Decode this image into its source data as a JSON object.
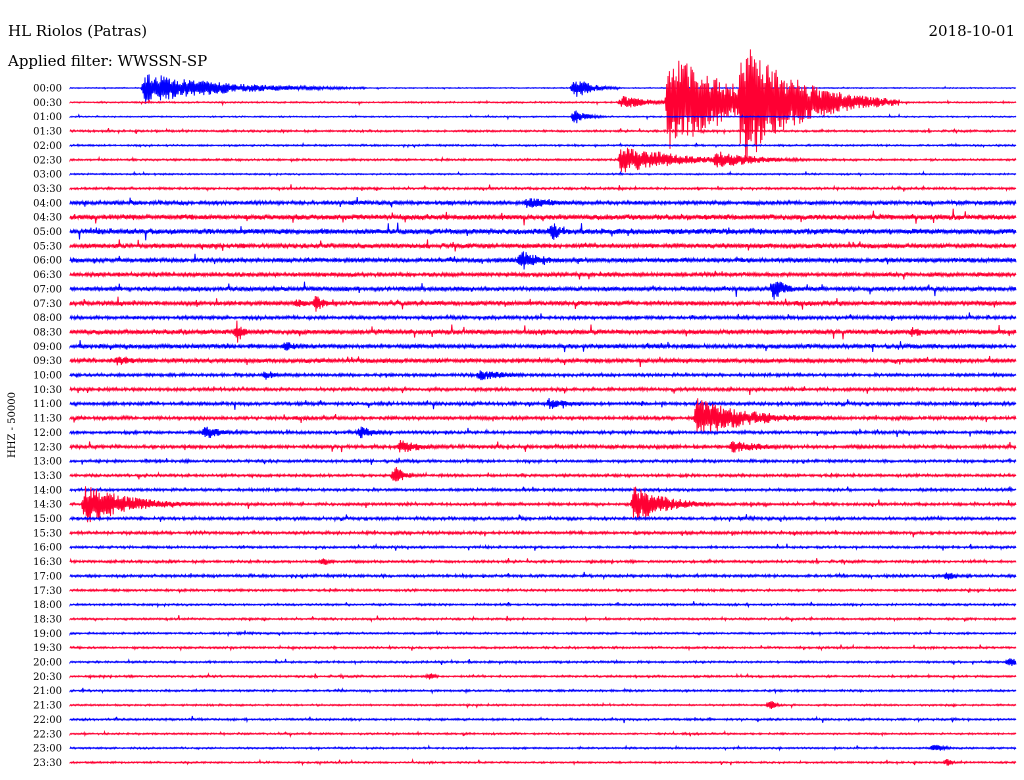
{
  "header": {
    "station": "HL Riolos (Patras)",
    "filter": "Applied filter: WWSSN-SP",
    "date": "2018-10-01"
  },
  "chart_data": {
    "type": "line",
    "title": "HL Riolos (Patras)",
    "subtitle": "Applied filter: WWSSN-SP",
    "date": "2018-10-01",
    "ylabel": "HHZ - 50000",
    "rows": [
      "00:00",
      "00:30",
      "01:00",
      "01:30",
      "02:00",
      "02:30",
      "03:00",
      "03:30",
      "04:00",
      "04:30",
      "05:00",
      "05:30",
      "06:00",
      "06:30",
      "07:00",
      "07:30",
      "08:00",
      "08:30",
      "09:00",
      "09:30",
      "10:00",
      "10:30",
      "11:00",
      "11:30",
      "12:00",
      "12:30",
      "13:00",
      "13:30",
      "14:00",
      "14:30",
      "15:00",
      "15:30",
      "16:00",
      "16:30",
      "17:00",
      "17:30",
      "18:00",
      "18:30",
      "19:00",
      "19:30",
      "20:00",
      "20:30",
      "21:00",
      "21:30",
      "22:00",
      "22:30",
      "23:00",
      "23:30"
    ],
    "colors": [
      "#0000ff",
      "#ff0033"
    ],
    "row_noise": [
      0.4,
      0.6,
      0.5,
      0.8,
      0.7,
      0.8,
      0.6,
      0.9,
      1.6,
      2.2,
      2.3,
      1.9,
      1.8,
      1.7,
      1.7,
      1.8,
      1.4,
      1.9,
      1.7,
      1.8,
      1.2,
      1.3,
      1.3,
      1.4,
      1.2,
      1.4,
      1.1,
      1.1,
      1.1,
      1.1,
      1.2,
      1.2,
      0.9,
      1.0,
      1.1,
      0.9,
      0.8,
      0.8,
      0.8,
      0.8,
      0.8,
      0.8,
      0.8,
      0.7,
      0.8,
      0.7,
      0.7,
      0.7
    ],
    "events": [
      {
        "row": 0,
        "minute": 2.4,
        "amp": 16,
        "dur": 7
      },
      {
        "row": 0,
        "minute": 16.0,
        "amp": 12,
        "dur": 1.5
      },
      {
        "row": 0,
        "minute": 7.5,
        "amp": 3,
        "dur": 2
      },
      {
        "row": 1,
        "minute": 19.0,
        "amp": 52,
        "dur": 6
      },
      {
        "row": 1,
        "minute": 21.3,
        "amp": 66,
        "dur": 5
      },
      {
        "row": 1,
        "minute": 17.5,
        "amp": 7,
        "dur": 3
      },
      {
        "row": 2,
        "minute": 16.0,
        "amp": 8,
        "dur": 1.2
      },
      {
        "row": 5,
        "minute": 17.5,
        "amp": 14,
        "dur": 5
      },
      {
        "row": 5,
        "minute": 20.5,
        "amp": 9,
        "dur": 4
      },
      {
        "row": 5,
        "minute": 18.6,
        "amp": 10,
        "dur": 3
      },
      {
        "row": 8,
        "minute": 14.5,
        "amp": 6,
        "dur": 3
      },
      {
        "row": 10,
        "minute": 15.3,
        "amp": 10,
        "dur": 1
      },
      {
        "row": 12,
        "minute": 14.3,
        "amp": 12,
        "dur": 2
      },
      {
        "row": 14,
        "minute": 22.3,
        "amp": 14,
        "dur": 1.2
      },
      {
        "row": 15,
        "minute": 7.2,
        "amp": 5,
        "dur": 1.5
      },
      {
        "row": 15,
        "minute": 7.8,
        "amp": 9,
        "dur": 1
      },
      {
        "row": 17,
        "minute": 5.3,
        "amp": 12,
        "dur": 0.7
      },
      {
        "row": 17,
        "minute": 26.7,
        "amp": 6,
        "dur": 1.5
      },
      {
        "row": 18,
        "minute": 6.8,
        "amp": 6,
        "dur": 1.5
      },
      {
        "row": 19,
        "minute": 1.5,
        "amp": 6,
        "dur": 2
      },
      {
        "row": 20,
        "minute": 13.0,
        "amp": 6,
        "dur": 3
      },
      {
        "row": 20,
        "minute": 6.2,
        "amp": 6,
        "dur": 1
      },
      {
        "row": 22,
        "minute": 15.2,
        "amp": 6,
        "dur": 2
      },
      {
        "row": 23,
        "minute": 19.9,
        "amp": 20,
        "dur": 5
      },
      {
        "row": 24,
        "minute": 4.3,
        "amp": 8,
        "dur": 1.5
      },
      {
        "row": 24,
        "minute": 9.2,
        "amp": 7,
        "dur": 1.5
      },
      {
        "row": 25,
        "minute": 10.5,
        "amp": 8,
        "dur": 2
      },
      {
        "row": 25,
        "minute": 21.0,
        "amp": 7,
        "dur": 3
      },
      {
        "row": 27,
        "minute": 10.3,
        "amp": 10,
        "dur": 1
      },
      {
        "row": 29,
        "minute": 0.5,
        "amp": 22,
        "dur": 4
      },
      {
        "row": 29,
        "minute": 17.9,
        "amp": 20,
        "dur": 3
      },
      {
        "row": 33,
        "minute": 8.0,
        "amp": 5,
        "dur": 1
      },
      {
        "row": 34,
        "minute": 27.8,
        "amp": 5,
        "dur": 1
      },
      {
        "row": 40,
        "minute": 29.8,
        "amp": 6,
        "dur": 1
      },
      {
        "row": 41,
        "minute": 11.4,
        "amp": 5,
        "dur": 0.5
      },
      {
        "row": 43,
        "minute": 22.2,
        "amp": 6,
        "dur": 0.5
      },
      {
        "row": 46,
        "minute": 27.4,
        "amp": 5,
        "dur": 1
      },
      {
        "row": 47,
        "minute": 27.8,
        "amp": 5,
        "dur": 0.5
      }
    ]
  }
}
